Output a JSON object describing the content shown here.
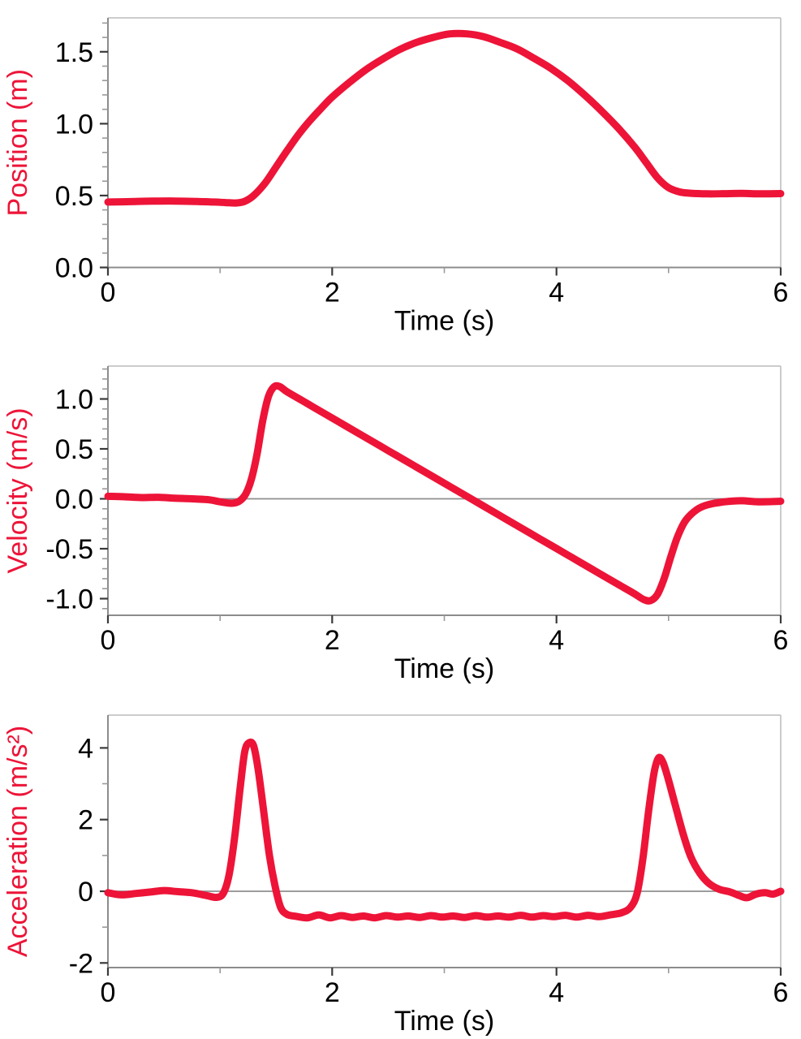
{
  "figure": {
    "background": "#ffffff"
  },
  "style": {
    "series_color": "#ED1438",
    "axis_color": "#8c8c8c",
    "frame_color": "#bcbcbc",
    "major_tick_color": "#3a3a3a",
    "minor_tick_color": "#9a9a9a",
    "tick_label_color": "#000000",
    "xlabel_color": "#000000",
    "zero_line_color": "#8f8f8f"
  },
  "chart_data": [
    {
      "id": "position",
      "type": "line",
      "xlabel": "Time (s)",
      "ylabel": "Position (m)",
      "xlim": [
        0,
        6
      ],
      "ylim": [
        0,
        1.736
      ],
      "x_major_ticks": [
        0,
        2,
        4,
        6
      ],
      "x_tick_labels": [
        "0",
        "2",
        "4",
        "6"
      ],
      "x_minor_ticks": [
        1,
        3,
        5
      ],
      "y_major_ticks": [
        0,
        0.5,
        1,
        1.5
      ],
      "y_tick_labels": [
        "0.0",
        "0.5",
        "1.0",
        "1.5"
      ],
      "y_minor_ticks": [
        0.1,
        0.2,
        0.3,
        0.4,
        0.6,
        0.7,
        0.8,
        0.9,
        1.1,
        1.2,
        1.3,
        1.4,
        1.6,
        1.7
      ],
      "zero_line": false,
      "legend": "none",
      "grid": false,
      "points": [
        [
          0,
          0.455
        ],
        [
          0.2,
          0.458
        ],
        [
          0.4,
          0.461
        ],
        [
          0.6,
          0.462
        ],
        [
          0.8,
          0.459
        ],
        [
          0.95,
          0.455
        ],
        [
          1.05,
          0.451
        ],
        [
          1.15,
          0.449
        ],
        [
          1.22,
          0.46
        ],
        [
          1.3,
          0.5
        ],
        [
          1.4,
          0.585
        ],
        [
          1.5,
          0.7
        ],
        [
          1.6,
          0.815
        ],
        [
          1.7,
          0.925
        ],
        [
          1.8,
          1.02
        ],
        [
          1.9,
          1.105
        ],
        [
          2.0,
          1.185
        ],
        [
          2.15,
          1.285
        ],
        [
          2.3,
          1.375
        ],
        [
          2.45,
          1.45
        ],
        [
          2.6,
          1.515
        ],
        [
          2.75,
          1.565
        ],
        [
          2.9,
          1.6
        ],
        [
          3.05,
          1.625
        ],
        [
          3.2,
          1.625
        ],
        [
          3.35,
          1.605
        ],
        [
          3.5,
          1.565
        ],
        [
          3.65,
          1.52
        ],
        [
          3.8,
          1.455
        ],
        [
          3.95,
          1.385
        ],
        [
          4.1,
          1.3
        ],
        [
          4.25,
          1.2
        ],
        [
          4.4,
          1.09
        ],
        [
          4.55,
          0.97
        ],
        [
          4.7,
          0.835
        ],
        [
          4.8,
          0.73
        ],
        [
          4.9,
          0.625
        ],
        [
          5.0,
          0.555
        ],
        [
          5.1,
          0.525
        ],
        [
          5.2,
          0.516
        ],
        [
          5.35,
          0.512
        ],
        [
          5.5,
          0.513
        ],
        [
          5.65,
          0.515
        ],
        [
          5.8,
          0.512
        ],
        [
          6,
          0.514
        ]
      ]
    },
    {
      "id": "velocity",
      "type": "line",
      "xlabel": "Time (s)",
      "ylabel": "Velocity (m/s)",
      "xlim": [
        0,
        6
      ],
      "ylim": [
        -1.167,
        1.329
      ],
      "x_major_ticks": [
        0,
        2,
        4,
        6
      ],
      "x_tick_labels": [
        "0",
        "2",
        "4",
        "6"
      ],
      "x_minor_ticks": [
        1,
        3,
        5
      ],
      "y_major_ticks": [
        -1,
        -0.5,
        0,
        0.5,
        1
      ],
      "y_tick_labels": [
        "-1.0",
        "-0.5",
        "0.0",
        "0.5",
        "1.0"
      ],
      "y_minor_ticks": [
        -1.1,
        -0.9,
        -0.8,
        -0.7,
        -0.6,
        -0.4,
        -0.3,
        -0.2,
        -0.1,
        0.1,
        0.2,
        0.3,
        0.4,
        0.6,
        0.7,
        0.8,
        0.9,
        1.1,
        1.2,
        1.3
      ],
      "zero_line": true,
      "legend": "none",
      "grid": false,
      "points": [
        [
          0,
          0.025
        ],
        [
          0.15,
          0.02
        ],
        [
          0.3,
          0.012
        ],
        [
          0.45,
          0.015
        ],
        [
          0.6,
          0.005
        ],
        [
          0.75,
          0.0
        ],
        [
          0.9,
          -0.01
        ],
        [
          1.0,
          -0.03
        ],
        [
          1.1,
          -0.045
        ],
        [
          1.17,
          -0.025
        ],
        [
          1.23,
          0.05
        ],
        [
          1.28,
          0.2
        ],
        [
          1.33,
          0.45
        ],
        [
          1.38,
          0.78
        ],
        [
          1.43,
          1.02
        ],
        [
          1.48,
          1.12
        ],
        [
          1.53,
          1.125
        ],
        [
          1.6,
          1.07
        ],
        [
          1.75,
          0.972
        ],
        [
          1.9,
          0.874
        ],
        [
          2.05,
          0.776
        ],
        [
          2.2,
          0.678
        ],
        [
          2.35,
          0.58
        ],
        [
          2.5,
          0.482
        ],
        [
          2.65,
          0.384
        ],
        [
          2.8,
          0.286
        ],
        [
          2.95,
          0.188
        ],
        [
          3.1,
          0.09
        ],
        [
          3.25,
          -0.008
        ],
        [
          3.4,
          -0.106
        ],
        [
          3.55,
          -0.204
        ],
        [
          3.7,
          -0.302
        ],
        [
          3.85,
          -0.4
        ],
        [
          4.0,
          -0.498
        ],
        [
          4.15,
          -0.596
        ],
        [
          4.3,
          -0.694
        ],
        [
          4.45,
          -0.792
        ],
        [
          4.6,
          -0.89
        ],
        [
          4.7,
          -0.955
        ],
        [
          4.78,
          -1.01
        ],
        [
          4.84,
          -1.02
        ],
        [
          4.9,
          -0.96
        ],
        [
          4.96,
          -0.8
        ],
        [
          5.02,
          -0.58
        ],
        [
          5.08,
          -0.38
        ],
        [
          5.15,
          -0.22
        ],
        [
          5.25,
          -0.11
        ],
        [
          5.35,
          -0.06
        ],
        [
          5.5,
          -0.03
        ],
        [
          5.65,
          -0.02
        ],
        [
          5.8,
          -0.03
        ],
        [
          6,
          -0.025
        ]
      ]
    },
    {
      "id": "acceleration",
      "type": "line",
      "xlabel": "Time (s)",
      "ylabel": "Acceleration (m/s²)",
      "xlim": [
        0,
        6
      ],
      "ylim": [
        -2.129,
        4.915
      ],
      "x_major_ticks": [
        0,
        2,
        4,
        6
      ],
      "x_tick_labels": [
        "0",
        "2",
        "4",
        "6"
      ],
      "x_minor_ticks": [
        1,
        3,
        5
      ],
      "y_major_ticks": [
        -2,
        0,
        2,
        4
      ],
      "y_tick_labels": [
        "-2",
        "0",
        "2",
        "4"
      ],
      "y_minor_ticks": [
        -1,
        1,
        3
      ],
      "zero_line": true,
      "legend": "none",
      "grid": false,
      "points": [
        [
          0,
          -0.04
        ],
        [
          0.12,
          -0.1
        ],
        [
          0.25,
          -0.06
        ],
        [
          0.38,
          -0.02
        ],
        [
          0.5,
          0.02
        ],
        [
          0.62,
          -0.01
        ],
        [
          0.75,
          -0.04
        ],
        [
          0.88,
          -0.12
        ],
        [
          0.97,
          -0.17
        ],
        [
          1.03,
          -0.05
        ],
        [
          1.08,
          0.45
        ],
        [
          1.13,
          1.5
        ],
        [
          1.18,
          2.9
        ],
        [
          1.22,
          3.9
        ],
        [
          1.26,
          4.15
        ],
        [
          1.3,
          4.05
        ],
        [
          1.34,
          3.4
        ],
        [
          1.39,
          2.2
        ],
        [
          1.44,
          1.0
        ],
        [
          1.49,
          0.15
        ],
        [
          1.54,
          -0.45
        ],
        [
          1.6,
          -0.65
        ],
        [
          1.68,
          -0.7
        ],
        [
          1.78,
          -0.74
        ],
        [
          1.88,
          -0.66
        ],
        [
          1.98,
          -0.74
        ],
        [
          2.08,
          -0.68
        ],
        [
          2.18,
          -0.73
        ],
        [
          2.28,
          -0.69
        ],
        [
          2.38,
          -0.74
        ],
        [
          2.48,
          -0.68
        ],
        [
          2.58,
          -0.72
        ],
        [
          2.68,
          -0.69
        ],
        [
          2.78,
          -0.73
        ],
        [
          2.88,
          -0.68
        ],
        [
          2.98,
          -0.72
        ],
        [
          3.08,
          -0.69
        ],
        [
          3.18,
          -0.73
        ],
        [
          3.28,
          -0.68
        ],
        [
          3.38,
          -0.72
        ],
        [
          3.48,
          -0.69
        ],
        [
          3.58,
          -0.72
        ],
        [
          3.68,
          -0.67
        ],
        [
          3.78,
          -0.72
        ],
        [
          3.88,
          -0.68
        ],
        [
          3.98,
          -0.71
        ],
        [
          4.08,
          -0.67
        ],
        [
          4.18,
          -0.72
        ],
        [
          4.28,
          -0.67
        ],
        [
          4.38,
          -0.71
        ],
        [
          4.48,
          -0.66
        ],
        [
          4.58,
          -0.6
        ],
        [
          4.66,
          -0.45
        ],
        [
          4.72,
          -0.05
        ],
        [
          4.77,
          0.9
        ],
        [
          4.82,
          2.2
        ],
        [
          4.87,
          3.3
        ],
        [
          4.91,
          3.72
        ],
        [
          4.95,
          3.6
        ],
        [
          5.0,
          3.1
        ],
        [
          5.06,
          2.4
        ],
        [
          5.13,
          1.6
        ],
        [
          5.2,
          0.95
        ],
        [
          5.28,
          0.5
        ],
        [
          5.36,
          0.22
        ],
        [
          5.45,
          0.06
        ],
        [
          5.55,
          -0.02
        ],
        [
          5.63,
          -0.12
        ],
        [
          5.7,
          -0.18
        ],
        [
          5.78,
          -0.08
        ],
        [
          5.86,
          -0.04
        ],
        [
          5.93,
          -0.08
        ],
        [
          6,
          0.0
        ]
      ]
    }
  ]
}
